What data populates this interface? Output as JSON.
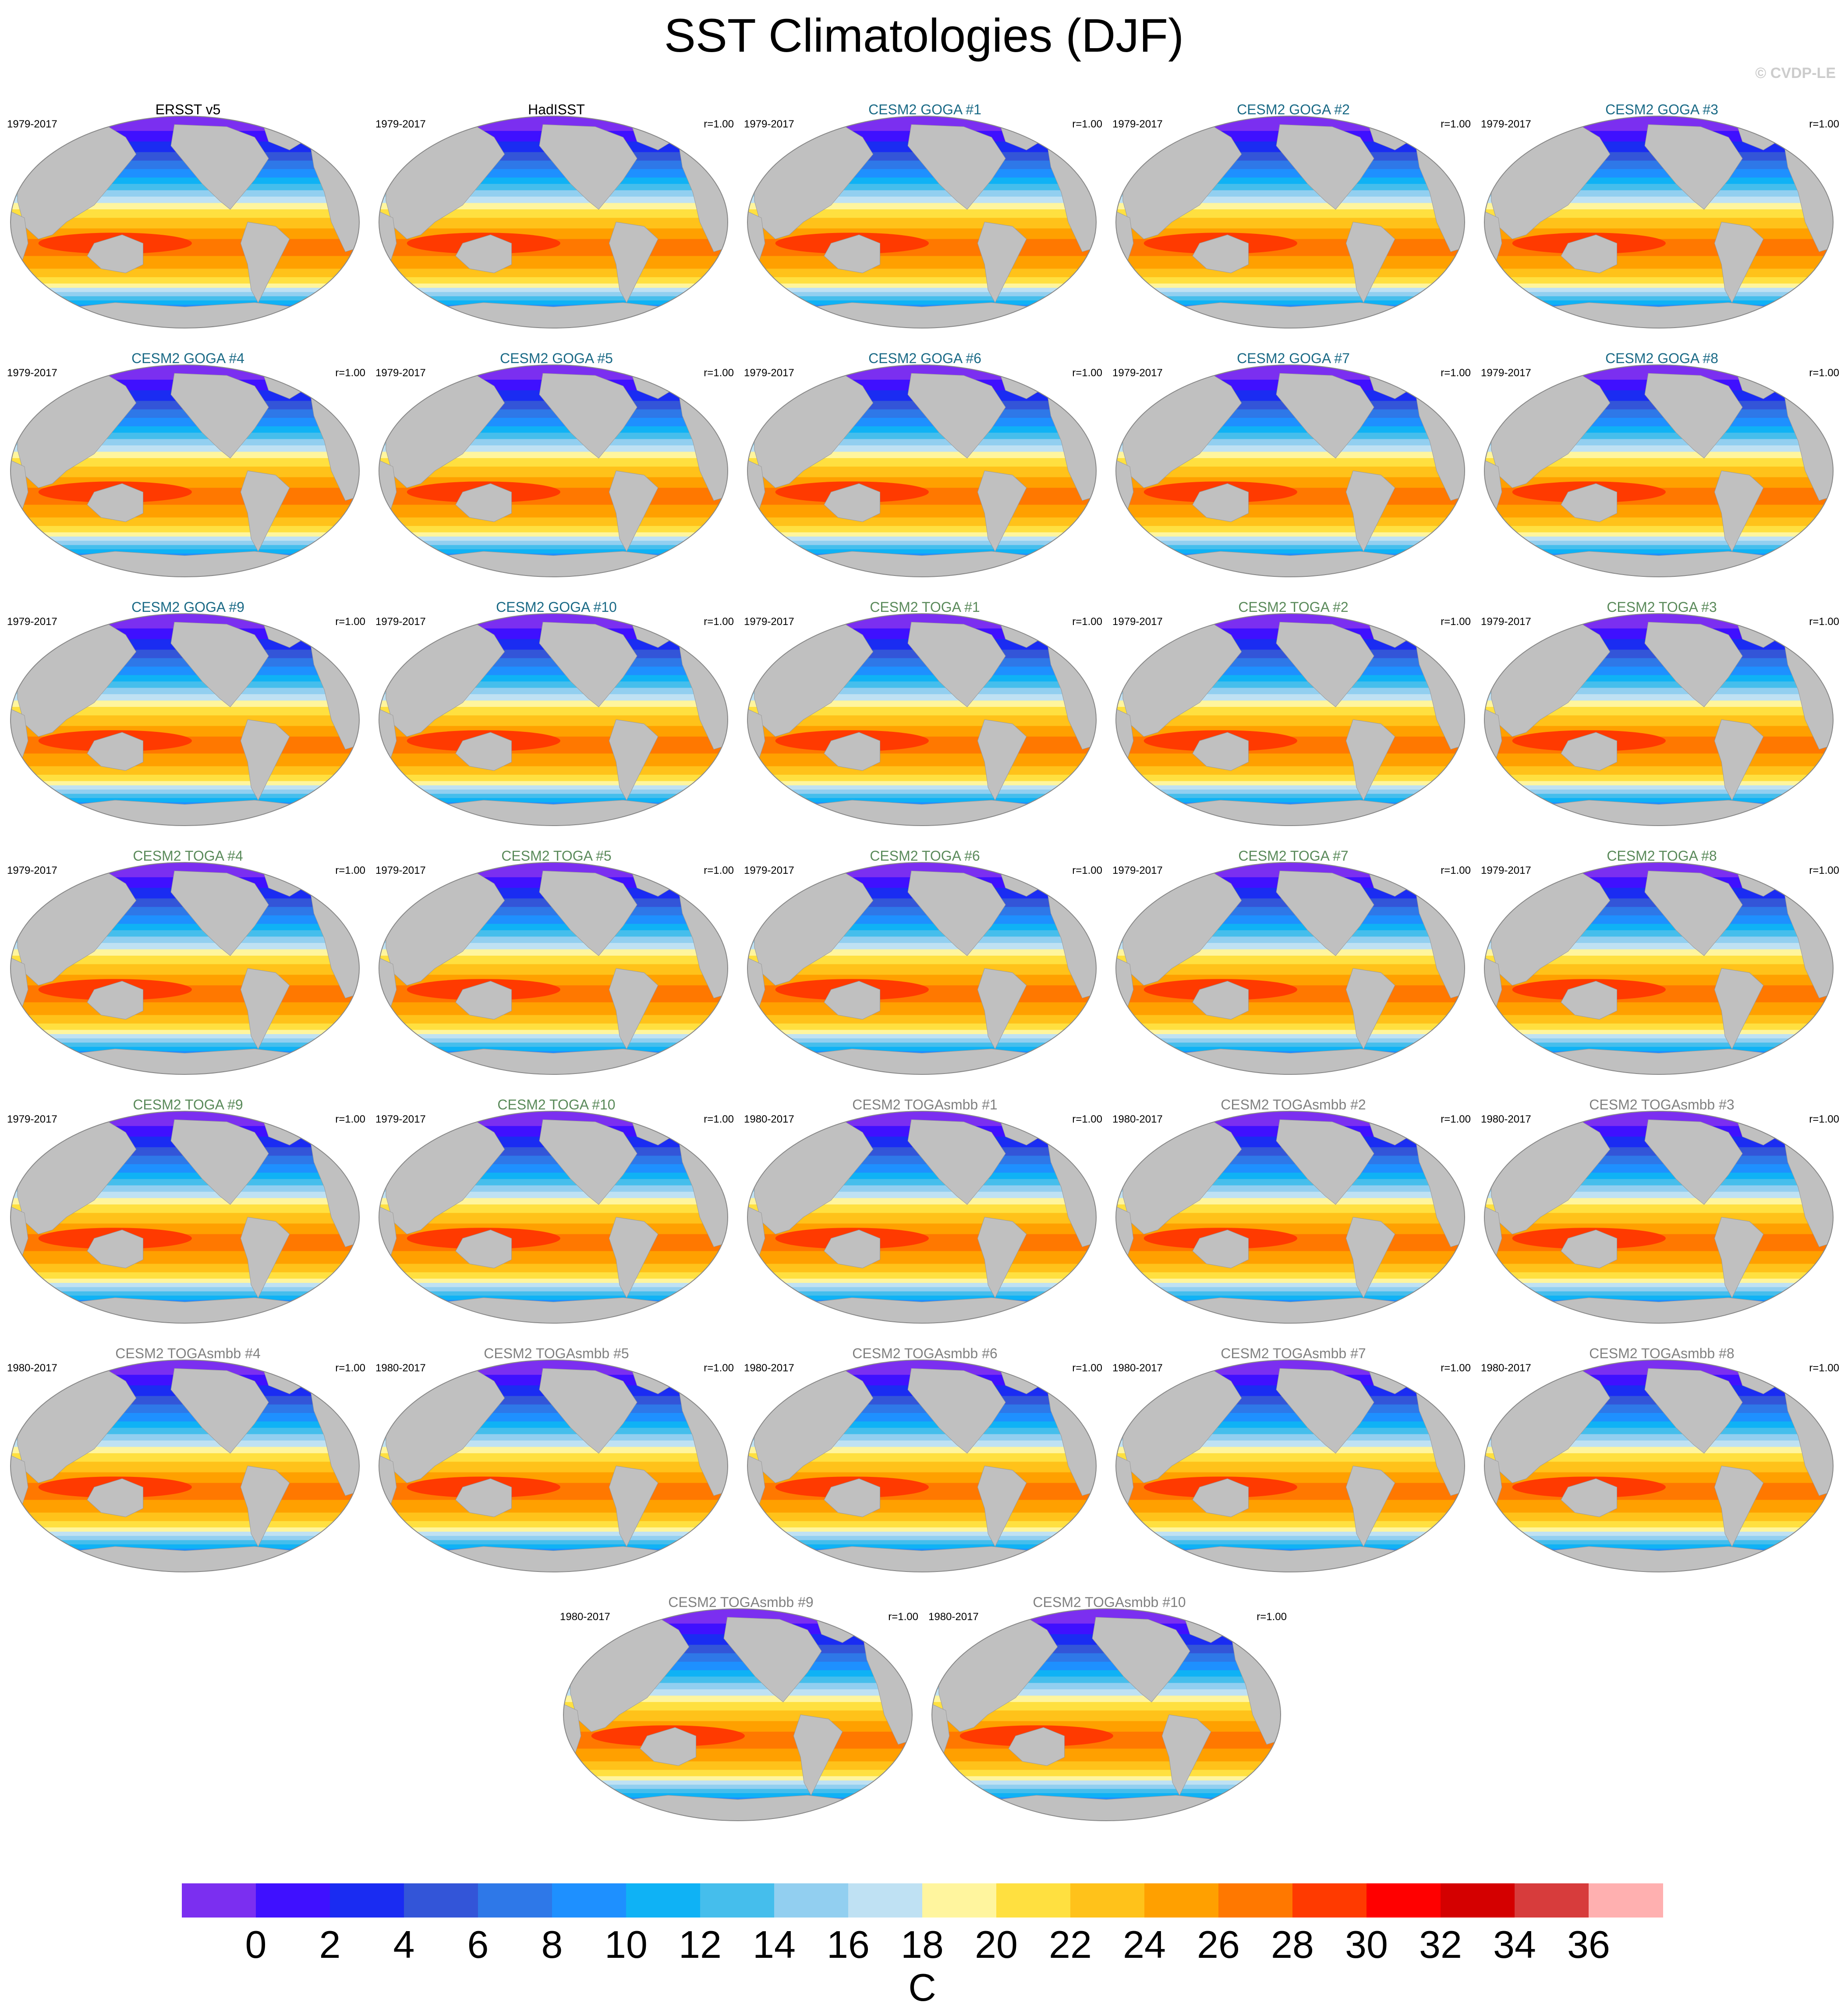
{
  "title": "SST Climatologies (DJF)",
  "copyright": "© CVDP-LE",
  "title_colors": {
    "obs": "#000000",
    "GOGA": "#1a6a86",
    "TOGA": "#5a8a5a",
    "TOGAsmbb": "#808080"
  },
  "panels": [
    {
      "title": "ERSST v5",
      "group": "obs",
      "period": "1979-2017",
      "r": ""
    },
    {
      "title": "HadISST",
      "group": "obs",
      "period": "1979-2017",
      "r": "r=1.00"
    },
    {
      "title": "CESM2 GOGA #1",
      "group": "GOGA",
      "period": "1979-2017",
      "r": "r=1.00"
    },
    {
      "title": "CESM2 GOGA #2",
      "group": "GOGA",
      "period": "1979-2017",
      "r": "r=1.00"
    },
    {
      "title": "CESM2 GOGA #3",
      "group": "GOGA",
      "period": "1979-2017",
      "r": "r=1.00"
    },
    {
      "title": "CESM2 GOGA #4",
      "group": "GOGA",
      "period": "1979-2017",
      "r": "r=1.00"
    },
    {
      "title": "CESM2 GOGA #5",
      "group": "GOGA",
      "period": "1979-2017",
      "r": "r=1.00"
    },
    {
      "title": "CESM2 GOGA #6",
      "group": "GOGA",
      "period": "1979-2017",
      "r": "r=1.00"
    },
    {
      "title": "CESM2 GOGA #7",
      "group": "GOGA",
      "period": "1979-2017",
      "r": "r=1.00"
    },
    {
      "title": "CESM2 GOGA #8",
      "group": "GOGA",
      "period": "1979-2017",
      "r": "r=1.00"
    },
    {
      "title": "CESM2 GOGA #9",
      "group": "GOGA",
      "period": "1979-2017",
      "r": "r=1.00"
    },
    {
      "title": "CESM2 GOGA #10",
      "group": "GOGA",
      "period": "1979-2017",
      "r": "r=1.00"
    },
    {
      "title": "CESM2 TOGA #1",
      "group": "TOGA",
      "period": "1979-2017",
      "r": "r=1.00"
    },
    {
      "title": "CESM2 TOGA #2",
      "group": "TOGA",
      "period": "1979-2017",
      "r": "r=1.00"
    },
    {
      "title": "CESM2 TOGA #3",
      "group": "TOGA",
      "period": "1979-2017",
      "r": "r=1.00"
    },
    {
      "title": "CESM2 TOGA #4",
      "group": "TOGA",
      "period": "1979-2017",
      "r": "r=1.00"
    },
    {
      "title": "CESM2 TOGA #5",
      "group": "TOGA",
      "period": "1979-2017",
      "r": "r=1.00"
    },
    {
      "title": "CESM2 TOGA #6",
      "group": "TOGA",
      "period": "1979-2017",
      "r": "r=1.00"
    },
    {
      "title": "CESM2 TOGA #7",
      "group": "TOGA",
      "period": "1979-2017",
      "r": "r=1.00"
    },
    {
      "title": "CESM2 TOGA #8",
      "group": "TOGA",
      "period": "1979-2017",
      "r": "r=1.00"
    },
    {
      "title": "CESM2 TOGA #9",
      "group": "TOGA",
      "period": "1979-2017",
      "r": "r=1.00"
    },
    {
      "title": "CESM2 TOGA #10",
      "group": "TOGA",
      "period": "1979-2017",
      "r": "r=1.00"
    },
    {
      "title": "CESM2 TOGAsmbb #1",
      "group": "TOGAsmbb",
      "period": "1980-2017",
      "r": "r=1.00"
    },
    {
      "title": "CESM2 TOGAsmbb #2",
      "group": "TOGAsmbb",
      "period": "1980-2017",
      "r": "r=1.00"
    },
    {
      "title": "CESM2 TOGAsmbb #3",
      "group": "TOGAsmbb",
      "period": "1980-2017",
      "r": "r=1.00"
    },
    {
      "title": "CESM2 TOGAsmbb #4",
      "group": "TOGAsmbb",
      "period": "1980-2017",
      "r": "r=1.00"
    },
    {
      "title": "CESM2 TOGAsmbb #5",
      "group": "TOGAsmbb",
      "period": "1980-2017",
      "r": "r=1.00"
    },
    {
      "title": "CESM2 TOGAsmbb #6",
      "group": "TOGAsmbb",
      "period": "1980-2017",
      "r": "r=1.00"
    },
    {
      "title": "CESM2 TOGAsmbb #7",
      "group": "TOGAsmbb",
      "period": "1980-2017",
      "r": "r=1.00"
    },
    {
      "title": "CESM2 TOGAsmbb #8",
      "group": "TOGAsmbb",
      "period": "1980-2017",
      "r": "r=1.00"
    },
    {
      "title": "CESM2 TOGAsmbb #9",
      "group": "TOGAsmbb",
      "period": "1980-2017",
      "r": "r=1.00"
    },
    {
      "title": "CESM2 TOGAsmbb #10",
      "group": "TOGAsmbb",
      "period": "1980-2017",
      "r": "r=1.00"
    }
  ],
  "chart_data": {
    "type": "heatmap",
    "title": "SST Climatologies (DJF)",
    "variable": "SST",
    "season": "DJF",
    "units": "C",
    "levels": [
      0,
      2,
      4,
      6,
      8,
      10,
      12,
      14,
      16,
      18,
      20,
      22,
      24,
      26,
      28,
      30,
      32,
      34,
      36
    ],
    "tick_labels": [
      "0",
      "2",
      "4",
      "6",
      "8",
      "10",
      "12",
      "14",
      "16",
      "18",
      "20",
      "22",
      "24",
      "26",
      "28",
      "30",
      "32",
      "34",
      "36"
    ],
    "colors": [
      "#7b2ff0",
      "#3f10ff",
      "#1a2cf2",
      "#3355d8",
      "#2e78e8",
      "#1e90ff",
      "#0fb2f5",
      "#45beec",
      "#92cff0",
      "#bfe1f3",
      "#fff59e",
      "#ffe040",
      "#ffc21a",
      "#ffa000",
      "#ff7800",
      "#ff3a00",
      "#ff0000",
      "#d40000",
      "#d73c3c",
      "#ffb0b0"
    ],
    "land_color": "#c0c0c0",
    "colorbar_label": "C"
  }
}
